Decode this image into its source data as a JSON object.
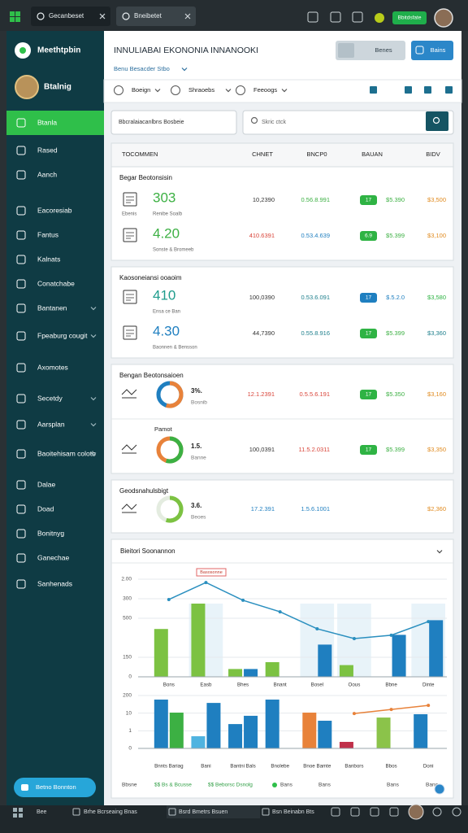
{
  "topbar": {
    "tabs": [
      "Gecanbeset",
      "Bneibetet"
    ],
    "badge": "Bbitdsfate"
  },
  "sidebar": {
    "brand": "Meethtpbin",
    "user": "Btalnig",
    "items": [
      "Btanla",
      "Rased",
      "Aanch",
      "Eacoresiab",
      "Fantus",
      "Kalnats",
      "Conatchabe",
      "Bantanen",
      "Fpeaburg cougit",
      "Axomotes",
      "Secetdy",
      "Aarsplan",
      "Baoitehisam colotb",
      "Dalae",
      "Doad",
      "Bonitnyg",
      "Ganechae",
      "Sanhenads"
    ],
    "button": "Betno Bonnton"
  },
  "header": {
    "title": "INNULIABAI EKONONIA INNANOOKI",
    "subtitle": "Benu Besacder Stbo",
    "buttons": [
      "Benes",
      "Bains"
    ]
  },
  "filters": [
    "Boeign",
    "Shraoebs",
    "Feeoogs"
  ],
  "search": {
    "left": "Bbcralaiacanlbns Bosbeie",
    "right": "Skric ctck"
  },
  "table": {
    "columns": [
      "TOCOMMEN",
      "CHNET",
      "BNCP0",
      "BAUAN",
      "BIDV"
    ],
    "groups": [
      {
        "title": "Begar Beotonsisin",
        "rows": [
          {
            "big": "303",
            "big_color": "#3cb043",
            "labels": [
              "Ebenis",
              "Renibe Soalb"
            ],
            "badge": "17",
            "badge_color": "#2fb344",
            "cells": [
              {
                "text": "10,2390",
                "color": "#333333"
              },
              {
                "text": "0.56.8.991",
                "color": "#3cb043"
              },
              {
                "text": "$5.390",
                "color": "#3cb043"
              },
              {
                "text": "$3,500",
                "color": "#e08a1e"
              }
            ]
          },
          {
            "big": "4.20",
            "big_color": "#3cb043",
            "labels": [
              "Sonste & Bromeeb"
            ],
            "badge": "6.9",
            "badge_color": "#2fb344",
            "cells": [
              {
                "text": "410.6391",
                "color": "#d9453a"
              },
              {
                "text": "0.53.4.639",
                "color": "#1f7fc0"
              },
              {
                "text": "$5.399",
                "color": "#3cb043"
              },
              {
                "text": "$3,100",
                "color": "#e08a1e"
              }
            ]
          }
        ]
      },
      {
        "title": "Kaosoneiansi ooaoim",
        "rows": [
          {
            "big": "410",
            "big_color": "#1e9c8c",
            "labels": [
              "Ensa ce Ban"
            ],
            "badge": "17",
            "badge_color": "#1f7fc0",
            "cells": [
              {
                "text": "100,0390",
                "color": "#333333"
              },
              {
                "text": "0.53.6.091",
                "color": "#1e7f8c"
              },
              {
                "text": "$.5.2.0",
                "color": "#1f7fc0"
              },
              {
                "text": "$3,580",
                "color": "#2fb344"
              }
            ]
          },
          {
            "big": "4.30",
            "big_color": "#1f7fc0",
            "labels": [
              "Baonnen & Bensson"
            ],
            "badge": "17",
            "badge_color": "#2fb344",
            "cells": [
              {
                "text": "44,7390",
                "color": "#333333"
              },
              {
                "text": "0.55.8.916",
                "color": "#1e7f8c"
              },
              {
                "text": "$5.399",
                "color": "#3cb043"
              },
              {
                "text": "$3,360",
                "color": "#1e7f8c"
              }
            ]
          }
        ]
      },
      {
        "title": "Bengan Beotonsaioen",
        "rows": [
          {
            "big": "3%.",
            "donut": [
              "#e8823a",
              "#1f7fc0"
            ],
            "labels": [
              "Bosnib"
            ],
            "badge": "17",
            "badge_color": "#2fb344",
            "cells": [
              {
                "text": "12.1.2391",
                "color": "#d9453a"
              },
              {
                "text": "0.5.5.6.191",
                "color": "#d9453a"
              },
              {
                "text": "$5.350",
                "color": "#3cb043"
              },
              {
                "text": "$3,160",
                "color": "#e08a1e"
              }
            ]
          },
          {
            "heading": "Pamot",
            "big": "1.5.",
            "donut": [
              "#3cb043",
              "#e8823a"
            ],
            "labels": [
              "Banne"
            ],
            "badge": "17",
            "badge_color": "#2fb344",
            "cells": [
              {
                "text": "100,0391",
                "color": "#333333"
              },
              {
                "text": "11.5.2.0311",
                "color": "#d9453a"
              },
              {
                "text": "$5.399",
                "color": "#3cb043"
              },
              {
                "text": "$3,350",
                "color": "#e08a1e"
              }
            ]
          }
        ]
      },
      {
        "title": "Geodsnahulsbigt",
        "rows": [
          {
            "big": "3.6.",
            "donut": [
              "#7cc242",
              "#e4ece0"
            ],
            "labels": [
              "Beoes"
            ],
            "cells": [
              {
                "text": "17.2.391",
                "color": "#1f7fc0"
              },
              {
                "text": "1.5.6.1001",
                "color": "#1f7fc0"
              },
              {
                "text": "$2,360",
                "color": "#e08a1e"
              }
            ]
          }
        ]
      }
    ]
  },
  "chart_card": {
    "title": "Bieitori Soonannon",
    "annotation": "Basosonne",
    "panels": [
      {
        "type": "bar",
        "categories": [
          "Bons",
          "Easb",
          "Bhes",
          "Bnant",
          "Bosel",
          "Oous",
          "Bbne",
          "Dinte"
        ],
        "ylim": [
          0,
          500
        ],
        "yticks": [
          0,
          {
            "value": 100,
            "label": "150"
          },
          {
            "value": 300,
            "label": "500"
          },
          {
            "value": 400,
            "label": "300"
          },
          {
            "value": 500,
            "label": "2.00"
          }
        ],
        "series": [
          {
            "type": "bar",
            "color": "#7cc242",
            "values": [
              245,
              375,
              40,
              75,
              0,
              60,
              0,
              0
            ]
          },
          {
            "type": "bar",
            "color": "#1f7fc0",
            "values": [
              0,
              0,
              40,
              0,
              165,
              0,
              215,
              290
            ]
          },
          {
            "type": "line",
            "color": "#2a8fbf",
            "values": [
              396,
              483,
              392,
              333,
              246,
              196,
              213,
              283
            ]
          }
        ]
      },
      {
        "type": "bar",
        "categories": [
          "Bnnts Bariag",
          "Bani",
          "Bantni Bals",
          "Bnolebe",
          "Bnoe Bamte",
          "Banbors",
          "Bbos",
          "Doni"
        ],
        "ylim": [
          0,
          300
        ],
        "yticks": [
          0,
          {
            "value": 100,
            "label": "1"
          },
          {
            "value": 200,
            "label": "10"
          },
          {
            "value": 300,
            "label": "200"
          }
        ],
        "series": [
          {
            "type": "bar",
            "colors": [
              "#1f7fc0",
              "#4fb3e0",
              "#1f7fc0",
              "#1f7fc0",
              "#e8823a",
              "#c0304a",
              "#8bc34a",
              "#1f7fc0"
            ],
            "values": [
              277,
              69,
              138,
              277,
              203,
              37,
              175,
              194
            ]
          },
          {
            "type": "bar",
            "colors": [
              "#3cb043",
              "#1f7fc0",
              "#1f7fc0",
              "#1f7fc0",
              "#1f7fc0",
              "#1f7fc0",
              "#1f7fc0",
              "#1f7fc0"
            ],
            "values": [
              203,
              258,
              185,
              0,
              157,
              0,
              0,
              0
            ]
          },
          {
            "type": "line",
            "color": "#e8823a",
            "values": [
              null,
              null,
              null,
              null,
              null,
              198,
              221,
              244
            ]
          }
        ]
      }
    ],
    "footer": [
      "Bbsne",
      "$$ Bs & Bcusse",
      "$$ Beborsc Dsnolg",
      "Bans",
      "Bans",
      "Bans",
      "Banc"
    ]
  },
  "bottombar": [
    "Bee",
    "Brhe Bcrseaing Bnas",
    "Bsrd Bmetrs Bsuen",
    "Bsn Beinabn Bts"
  ]
}
